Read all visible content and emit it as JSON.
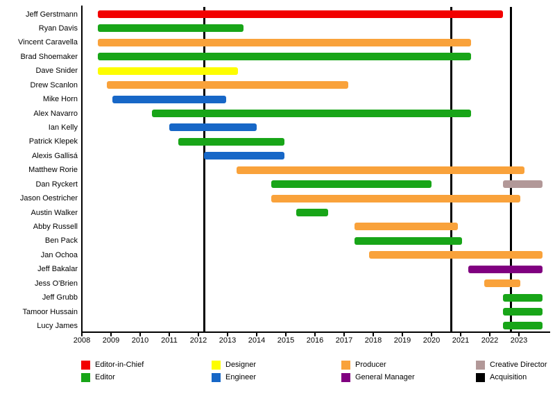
{
  "chart_data": {
    "type": "bar",
    "subtype": "gantt-timeline",
    "title": "",
    "xlabel": "",
    "ylabel": "",
    "x_axis": {
      "min_year": 2008,
      "max_year": 2023.8,
      "tick_years": [
        2008,
        2009,
        2010,
        2011,
        2012,
        2013,
        2014,
        2015,
        2016,
        2017,
        2018,
        2019,
        2020,
        2021,
        2022,
        2023
      ]
    },
    "role_colors": {
      "Editor-in-Chief": "#F20000",
      "Editor": "#18A518",
      "Designer": "#FDFD00",
      "Engineer": "#1767C7",
      "Producer": "#F9A23B",
      "General Manager": "#800080",
      "Creative Director": "#B29898",
      "Acquisition": "#000000"
    },
    "people": [
      {
        "name": "Jeff Gerstmann",
        "bars": [
          {
            "role": "Editor-in-Chief",
            "start": 2008.55,
            "end": 2022.45
          }
        ]
      },
      {
        "name": "Ryan Davis",
        "bars": [
          {
            "role": "Editor",
            "start": 2008.55,
            "end": 2013.55
          }
        ]
      },
      {
        "name": "Vincent Caravella",
        "bars": [
          {
            "role": "Producer",
            "start": 2008.55,
            "end": 2021.35
          }
        ]
      },
      {
        "name": "Brad Shoemaker",
        "bars": [
          {
            "role": "Editor",
            "start": 2008.55,
            "end": 2021.35
          }
        ]
      },
      {
        "name": "Dave Snider",
        "bars": [
          {
            "role": "Designer",
            "start": 2008.55,
            "end": 2013.35
          }
        ]
      },
      {
        "name": "Drew Scanlon",
        "bars": [
          {
            "role": "Producer",
            "start": 2008.85,
            "end": 2017.15
          }
        ]
      },
      {
        "name": "Mike Horn",
        "bars": [
          {
            "role": "Engineer",
            "start": 2009.05,
            "end": 2012.95
          }
        ]
      },
      {
        "name": "Alex Navarro",
        "bars": [
          {
            "role": "Editor",
            "start": 2010.4,
            "end": 2021.35
          }
        ]
      },
      {
        "name": "Ian Kelly",
        "bars": [
          {
            "role": "Engineer",
            "start": 2011.0,
            "end": 2014.0
          }
        ]
      },
      {
        "name": "Patrick Klepek",
        "bars": [
          {
            "role": "Editor",
            "start": 2011.3,
            "end": 2014.95
          }
        ]
      },
      {
        "name": "Alexis Gallisá",
        "bars": [
          {
            "role": "Engineer",
            "start": 2012.2,
            "end": 2014.95
          }
        ]
      },
      {
        "name": "Matthew Rorie",
        "bars": [
          {
            "role": "Producer",
            "start": 2013.3,
            "end": 2023.2
          }
        ]
      },
      {
        "name": "Dan Ryckert",
        "bars": [
          {
            "role": "Editor",
            "start": 2014.5,
            "end": 2020.0
          },
          {
            "role": "Creative Director",
            "start": 2022.45,
            "end": 2023.8
          }
        ]
      },
      {
        "name": "Jason Oestricher",
        "bars": [
          {
            "role": "Producer",
            "start": 2014.5,
            "end": 2023.05
          }
        ]
      },
      {
        "name": "Austin Walker",
        "bars": [
          {
            "role": "Editor",
            "start": 2015.35,
            "end": 2016.45
          }
        ]
      },
      {
        "name": "Abby Russell",
        "bars": [
          {
            "role": "Producer",
            "start": 2017.35,
            "end": 2020.9
          }
        ]
      },
      {
        "name": "Ben Pack",
        "bars": [
          {
            "role": "Editor",
            "start": 2017.35,
            "end": 2021.05
          }
        ]
      },
      {
        "name": "Jan Ochoa",
        "bars": [
          {
            "role": "Producer",
            "start": 2017.85,
            "end": 2023.8
          }
        ]
      },
      {
        "name": "Jeff Bakalar",
        "bars": [
          {
            "role": "General Manager",
            "start": 2021.25,
            "end": 2023.8
          }
        ]
      },
      {
        "name": "Jess O'Brien",
        "bars": [
          {
            "role": "Producer",
            "start": 2021.8,
            "end": 2023.05
          }
        ]
      },
      {
        "name": "Jeff Grubb",
        "bars": [
          {
            "role": "Editor",
            "start": 2022.45,
            "end": 2023.8
          }
        ]
      },
      {
        "name": "Tamoor Hussain",
        "bars": [
          {
            "role": "Editor",
            "start": 2022.45,
            "end": 2023.8
          }
        ]
      },
      {
        "name": "Lucy James",
        "bars": [
          {
            "role": "Editor",
            "start": 2022.45,
            "end": 2023.8
          }
        ]
      }
    ],
    "events": [
      {
        "label": "Acquisition",
        "year": 2012.2
      },
      {
        "label": "Acquisition",
        "year": 2020.67
      },
      {
        "label": "Acquisition",
        "year": 2022.73
      }
    ],
    "legend": {
      "position": "bottom",
      "columns": [
        [
          {
            "label": "Editor-in-Chief",
            "color": "#F20000"
          },
          {
            "label": "Editor",
            "color": "#18A518"
          }
        ],
        [
          {
            "label": "Designer",
            "color": "#FDFD00"
          },
          {
            "label": "Engineer",
            "color": "#1767C7"
          }
        ],
        [
          {
            "label": "Producer",
            "color": "#F9A23B"
          },
          {
            "label": "General Manager",
            "color": "#800080"
          }
        ],
        [
          {
            "label": "Creative Director",
            "color": "#B29898"
          },
          {
            "label": "Acquisition",
            "color": "#000000"
          }
        ]
      ]
    },
    "grid": false
  }
}
